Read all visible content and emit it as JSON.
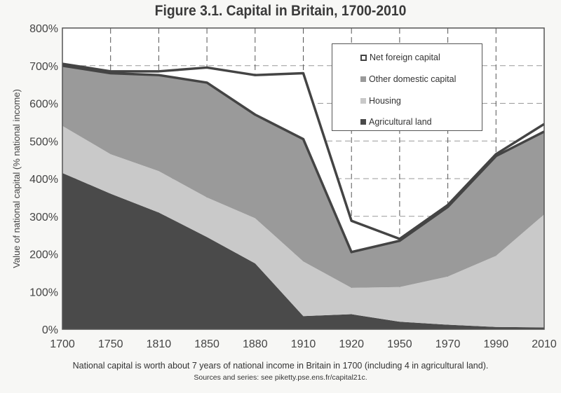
{
  "title": "Figure 3.1. Capital in Britain, 1700-2010",
  "note": "National capital is worth about 7 years of national income in Britain in 1700 (including 4 in agricultural land).",
  "source": "Sources and series: see piketty.pse.ens.fr/capital21c.",
  "colors": {
    "agricultural": "#4a4a4a",
    "housing": "#c9c9c9",
    "other_domestic": "#9a9a9a",
    "net_foreign": "#ffffff",
    "line": "#444444"
  },
  "legend": [
    {
      "label": "Net foreign capital"
    },
    {
      "label": "Other domestic capital"
    },
    {
      "label": "Housing"
    },
    {
      "label": "Agricultural land"
    }
  ],
  "chart_data": {
    "type": "area",
    "stacked": true,
    "title": "Figure 3.1. Capital in Britain, 1700-2010",
    "xlabel": "",
    "ylabel": "Value of national capital (% national income)",
    "ylim": [
      0,
      800
    ],
    "yticks": [
      "0%",
      "100%",
      "200%",
      "300%",
      "400%",
      "500%",
      "600%",
      "700%",
      "800%"
    ],
    "categories": [
      "1700",
      "1750",
      "1810",
      "1850",
      "1880",
      "1910",
      "1920",
      "1950",
      "1970",
      "1990",
      "2010"
    ],
    "grid": "dashed",
    "legend_position": "upper right",
    "series": [
      {
        "name": "Agricultural land",
        "values": [
          415,
          360,
          310,
          245,
          175,
          35,
          40,
          20,
          12,
          6,
          5
        ]
      },
      {
        "name": "Housing",
        "values": [
          125,
          105,
          110,
          105,
          120,
          145,
          70,
          92,
          128,
          189,
          300
        ]
      },
      {
        "name": "Other domestic capital",
        "values": [
          160,
          215,
          255,
          305,
          275,
          325,
          95,
          123,
          185,
          265,
          220
        ]
      },
      {
        "name": "Net foreign capital",
        "values": [
          5,
          5,
          10,
          40,
          105,
          175,
          83,
          5,
          5,
          5,
          20
        ]
      }
    ],
    "totals": [
      705,
      685,
      685,
      695,
      675,
      680,
      288,
      240,
      330,
      465,
      545
    ],
    "annotations": [
      "National capital is worth about 7 years of national income in Britain in 1700 (including 4 in agricultural land).",
      "Sources and series: see piketty.pse.ens.fr/capital21c."
    ]
  }
}
